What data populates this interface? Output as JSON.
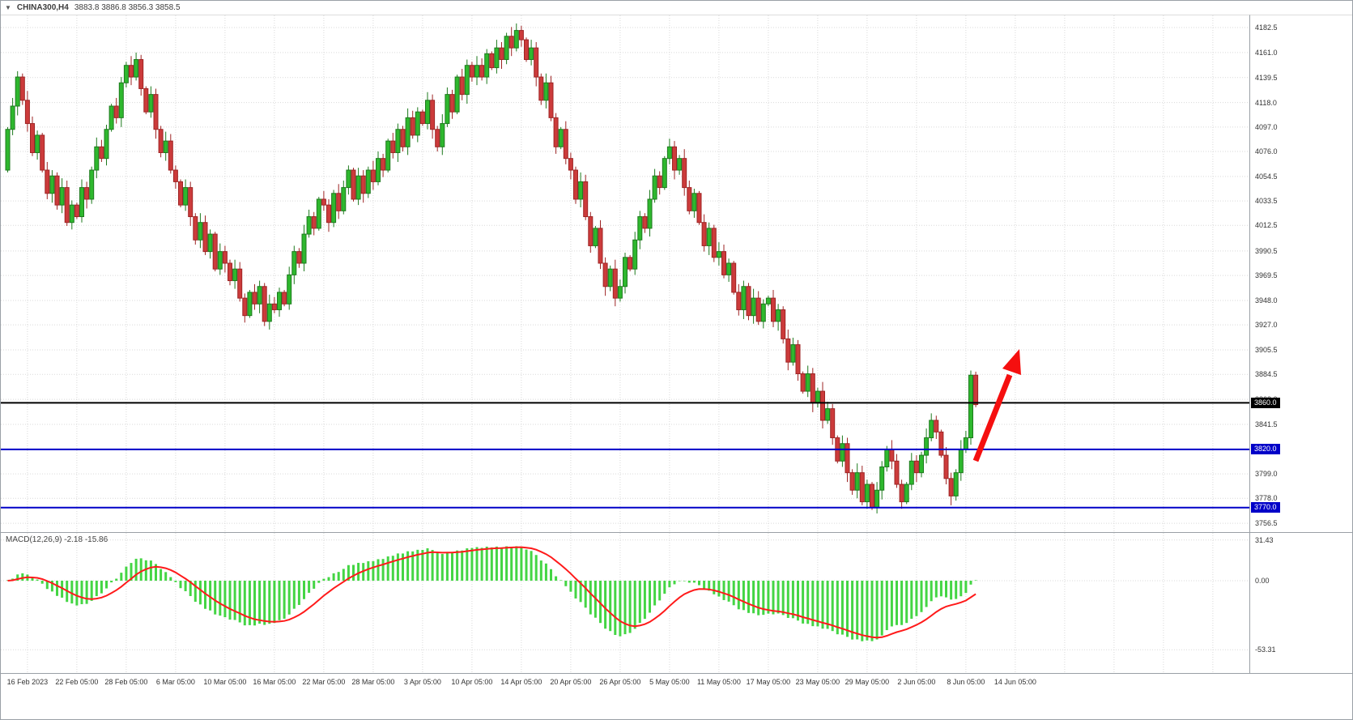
{
  "title_bar": {
    "symbol_period": "CHINA300,H4",
    "ohlc": "3883.8 3886.8 3856.3 3858.5"
  },
  "colors": {
    "background": "#ffffff",
    "grid": "#d9d9d9",
    "bull": "#2eb82e",
    "bull_border": "#1d7a1d",
    "bear": "#cc3b3b",
    "bear_border": "#9e2424",
    "macd_histogram": "#44d544",
    "macd_signal": "#ff1a1a",
    "arrow": "#f50f0f",
    "level_black": "#000000",
    "level_blue": "#0000c8"
  },
  "price_axis": {
    "labels": [
      "4182.5",
      "4161.0",
      "4139.5",
      "4118.0",
      "4097.0",
      "4076.0",
      "4054.5",
      "4033.5",
      "4012.5",
      "3990.5",
      "3969.5",
      "3948.0",
      "3927.0",
      "3905.5",
      "3884.5",
      "3863.0",
      "3841.5",
      "3820.0",
      "3799.0",
      "3778.0",
      "3756.5"
    ],
    "tags": [
      {
        "text": "3860.0",
        "price": 3860.0,
        "bg": "#000000"
      },
      {
        "text": "3820.0",
        "price": 3820.0,
        "bg": "#0000c8"
      },
      {
        "text": "3770.0",
        "price": 3770.0,
        "bg": "#0000c8"
      }
    ]
  },
  "hlines": [
    {
      "price": 3860.0,
      "color": "#000000",
      "width": 2
    },
    {
      "price": 3820.0,
      "color": "#0000c8",
      "width": 2
    },
    {
      "price": 3770.0,
      "color": "#0000c8",
      "width": 2
    }
  ],
  "macd_panel": {
    "label": "MACD(12,26,9)",
    "values_text": "-2.18 -15.86",
    "axis_labels": [
      {
        "text": "31.43",
        "value": 31.43
      },
      {
        "text": "0.00",
        "value": 0
      },
      {
        "text": "-53.31",
        "value": -53.31
      }
    ]
  },
  "time_axis": {
    "labels": [
      "16 Feb 2023",
      "22 Feb 05:00",
      "28 Feb 05:00",
      "6 Mar 05:00",
      "10 Mar 05:00",
      "16 Mar 05:00",
      "22 Mar 05:00",
      "28 Mar 05:00",
      "3 Apr 05:00",
      "10 Apr 05:00",
      "14 Apr 05:00",
      "20 Apr 05:00",
      "26 Apr 05:00",
      "5 May 05:00",
      "11 May 05:00",
      "17 May 05:00",
      "23 May 05:00",
      "29 May 05:00",
      "2 Jun 05:00",
      "8 Jun 05:00",
      "14 Jun 05:00"
    ]
  },
  "chart_data": {
    "type": "candlestick",
    "symbol": "CHINA300",
    "timeframe": "H4",
    "title": "CHINA300,H4 3883.8 3886.8 3856.3 3858.5",
    "price_axis_range": [
      3756.5,
      4182.5
    ],
    "grid": true,
    "first_open": 4060,
    "closes": [
      4095,
      4115,
      4140,
      4120,
      4100,
      4075,
      4090,
      4060,
      4040,
      4055,
      4030,
      4045,
      4015,
      4030,
      4020,
      4045,
      4035,
      4060,
      4080,
      4070,
      4095,
      4115,
      4105,
      4135,
      4150,
      4140,
      4155,
      4130,
      4110,
      4125,
      4095,
      4075,
      4085,
      4060,
      4050,
      4030,
      4045,
      4020,
      4000,
      4015,
      3990,
      4005,
      3975,
      3990,
      3980,
      3965,
      3975,
      3950,
      3935,
      3955,
      3945,
      3960,
      3930,
      3945,
      3940,
      3955,
      3945,
      3970,
      3990,
      3980,
      4005,
      4020,
      4010,
      4035,
      4030,
      4015,
      4040,
      4025,
      4045,
      4060,
      4035,
      4055,
      4040,
      4060,
      4050,
      4070,
      4060,
      4085,
      4075,
      4095,
      4080,
      4105,
      4090,
      4110,
      4100,
      4120,
      4095,
      4080,
      4100,
      4125,
      4110,
      4140,
      4125,
      4150,
      4140,
      4150,
      4140,
      4160,
      4148,
      4165,
      4155,
      4175,
      4165,
      4180,
      4172,
      4155,
      4165,
      4140,
      4120,
      4135,
      4105,
      4080,
      4095,
      4070,
      4060,
      4035,
      4050,
      4020,
      3995,
      4010,
      3980,
      3960,
      3975,
      3950,
      3960,
      3985,
      3975,
      4000,
      4020,
      4010,
      4035,
      4055,
      4045,
      4070,
      4080,
      4060,
      4070,
      4045,
      4025,
      4040,
      4015,
      3995,
      4010,
      3985,
      3990,
      3970,
      3980,
      3955,
      3940,
      3960,
      3935,
      3950,
      3930,
      3945,
      3950,
      3930,
      3940,
      3915,
      3895,
      3910,
      3885,
      3870,
      3885,
      3860,
      3870,
      3845,
      3855,
      3830,
      3810,
      3825,
      3800,
      3785,
      3800,
      3775,
      3790,
      3770,
      3785,
      3805,
      3820,
      3810,
      3790,
      3775,
      3790,
      3810,
      3800,
      3815,
      3830,
      3845,
      3835,
      3815,
      3795,
      3780,
      3800,
      3820,
      3830,
      3883.8,
      3858.5
    ],
    "last_candle": {
      "open": 3883.8,
      "high": 3886.8,
      "low": 3856.3,
      "close": 3858.5
    },
    "support_resistance_levels": [
      3860.0,
      3820.0,
      3770.0
    ],
    "macd": {
      "fast": 12,
      "slow": 26,
      "signal": 9,
      "last_macd": -2.18,
      "last_signal": -15.86,
      "macd_axis_ticks": [
        31.43,
        0,
        -53.31
      ]
    },
    "annotation": "thick red up-right arrow projecting a breakout from the 3820 level toward 3905"
  }
}
